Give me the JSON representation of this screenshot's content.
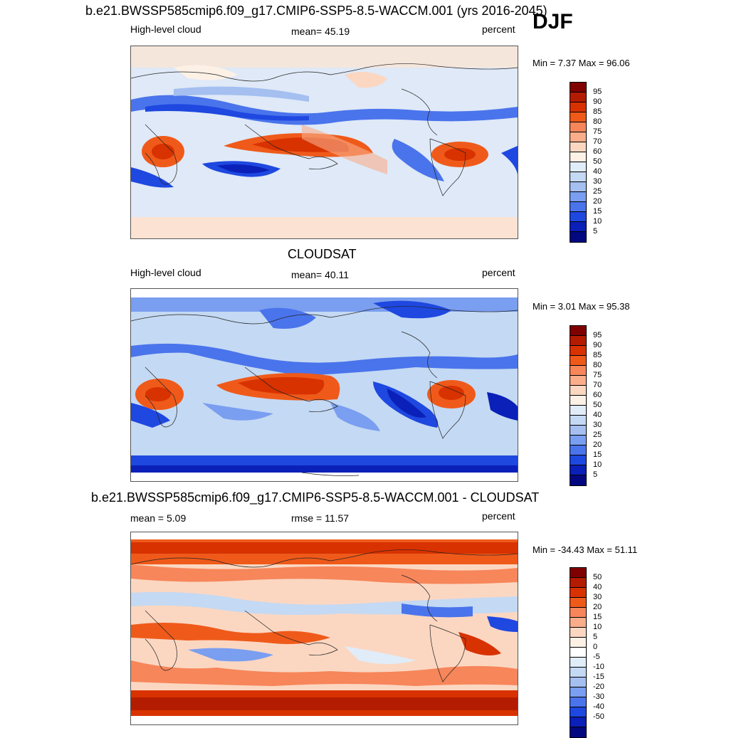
{
  "header": {
    "title": "b.e21.BWSSP585cmip6.f09_g17.CMIP6-SSP5-8.5-WACCM.001 (yrs 2016-2045)",
    "season": "DJF"
  },
  "panels": [
    {
      "variable": "High-level cloud",
      "stat": "mean=  45.19",
      "units": "percent",
      "minmax": "Min =   7.37 Max =  96.06",
      "colorbar": [
        "95",
        "90",
        "85",
        "80",
        "75",
        "70",
        "60",
        "50",
        "40",
        "30",
        "25",
        "20",
        "15",
        "10",
        "5"
      ]
    },
    {
      "title": "CLOUDSAT",
      "variable": "High-level cloud",
      "stat": "mean=  40.11",
      "units": "percent",
      "minmax": "Min =   3.01 Max =  95.38",
      "colorbar": [
        "95",
        "90",
        "85",
        "80",
        "75",
        "70",
        "60",
        "50",
        "40",
        "30",
        "25",
        "20",
        "15",
        "10",
        "5"
      ]
    },
    {
      "title": "b.e21.BWSSP585cmip6.f09_g17.CMIP6-SSP5-8.5-WACCM.001 - CLOUDSAT",
      "stat": "mean =   5.09",
      "rmse": "rmse =  11.57",
      "units": "percent",
      "minmax": "Min = -34.43 Max =  51.11",
      "colorbar": [
        "50",
        "40",
        "30",
        "20",
        "15",
        "10",
        "5",
        "0",
        "-5",
        "-10",
        "-15",
        "-20",
        "-30",
        "-40",
        "-50"
      ]
    }
  ],
  "palette": {
    "abs": [
      "#7f0000",
      "#b31c00",
      "#d83200",
      "#ef5a1a",
      "#f7865a",
      "#f9ad8a",
      "#fbd7c2",
      "#fdf1e6",
      "#e1ecf9",
      "#c4d9f3",
      "#a4bff0",
      "#7a9ef0",
      "#4a74ec",
      "#1e48e0",
      "#0a20b8",
      "#030880"
    ],
    "diff": [
      "#7f0000",
      "#b31c00",
      "#d83200",
      "#ef5a1a",
      "#f7865a",
      "#f9ad8a",
      "#fbd7c2",
      "#fdf1e6",
      "#ffffff",
      "#e1ecf9",
      "#c4d9f3",
      "#a4bff0",
      "#7a9ef0",
      "#4a74ec",
      "#1e48e0",
      "#0a20b8",
      "#030880"
    ]
  }
}
